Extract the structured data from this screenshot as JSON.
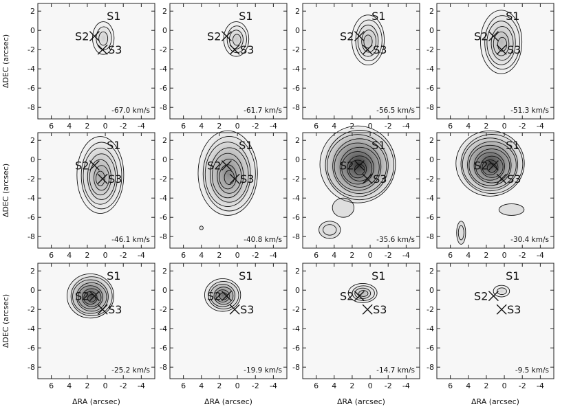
{
  "chart_data": {
    "type": "contour",
    "title": "",
    "xlabel": "ΔRA (arcsec)",
    "ylabel": "ΔDEC (arcsec)",
    "xlim": [
      7.5,
      -5.5
    ],
    "ylim": [
      -9.2,
      2.8
    ],
    "x_ticks": [
      6,
      4,
      2,
      0,
      -2,
      -4
    ],
    "y_ticks": [
      2,
      0,
      -2,
      -4,
      -6,
      -8
    ],
    "grid": false,
    "layout": "3 rows x 4 columns",
    "sources": [
      {
        "name": "S1",
        "x": 0.0,
        "y": 1.6
      },
      {
        "name": "S2",
        "x": 1.2,
        "y": -0.6
      },
      {
        "name": "S3",
        "x": 0.3,
        "y": -2.0
      }
    ],
    "panels": [
      {
        "velocity": "-67.0 km/s",
        "peak": {
          "x": 0.2,
          "y": -0.8
        },
        "size": [
          1.2,
          1.7
        ],
        "levels": 3,
        "intensity": 0.08,
        "secondary": []
      },
      {
        "velocity": "-61.7 km/s",
        "peak": {
          "x": 0.1,
          "y": -0.9
        },
        "size": [
          1.4,
          1.8
        ],
        "levels": 4,
        "intensity": 0.1,
        "secondary": []
      },
      {
        "velocity": "-56.5 km/s",
        "peak": {
          "x": 0.2,
          "y": -1.0
        },
        "size": [
          1.8,
          2.6
        ],
        "levels": 5,
        "intensity": 0.14,
        "secondary": []
      },
      {
        "velocity": "-51.3 km/s",
        "peak": {
          "x": 0.3,
          "y": -1.2
        },
        "size": [
          2.3,
          3.3
        ],
        "levels": 6,
        "intensity": 0.18,
        "secondary": []
      },
      {
        "velocity": "-46.1 km/s",
        "peak": {
          "x": 0.5,
          "y": -1.6
        },
        "size": [
          2.6,
          4.0
        ],
        "levels": 7,
        "intensity": 0.25,
        "secondary": []
      },
      {
        "velocity": "-40.8 km/s",
        "peak": {
          "x": 1.0,
          "y": -1.4
        },
        "size": [
          3.3,
          4.4
        ],
        "levels": 8,
        "intensity": 0.4,
        "secondary": [
          {
            "x": 4.0,
            "y": -7.1,
            "size": [
              0.2,
              0.2
            ],
            "levels": 1
          }
        ]
      },
      {
        "velocity": "-35.6 km/s",
        "peak": {
          "x": 1.3,
          "y": -0.5
        },
        "size": [
          4.2,
          4.0
        ],
        "levels": 10,
        "intensity": 0.75,
        "secondary": [
          {
            "x": 4.5,
            "y": -7.3,
            "size": [
              1.2,
              0.9
            ],
            "levels": 2
          },
          {
            "x": 3.0,
            "y": -5.0,
            "size": [
              1.2,
              1.0
            ],
            "levels": 1
          }
        ]
      },
      {
        "velocity": "-30.4 km/s",
        "peak": {
          "x": 1.5,
          "y": -0.4
        },
        "size": [
          3.8,
          3.4
        ],
        "levels": 10,
        "intensity": 0.7,
        "secondary": [
          {
            "x": 4.8,
            "y": -7.6,
            "size": [
              0.5,
              1.2
            ],
            "levels": 2
          },
          {
            "x": -0.8,
            "y": -5.2,
            "size": [
              1.4,
              0.6
            ],
            "levels": 1
          }
        ]
      },
      {
        "velocity": "-25.2 km/s",
        "peak": {
          "x": 1.6,
          "y": -0.6
        },
        "size": [
          2.6,
          2.3
        ],
        "levels": 8,
        "intensity": 0.65,
        "secondary": []
      },
      {
        "velocity": "-19.9 km/s",
        "peak": {
          "x": 1.6,
          "y": -0.5
        },
        "size": [
          2.0,
          1.7
        ],
        "levels": 6,
        "intensity": 0.5,
        "secondary": []
      },
      {
        "velocity": "-14.7 km/s",
        "peak": {
          "x": 0.8,
          "y": -0.3
        },
        "size": [
          1.6,
          1.0
        ],
        "levels": 4,
        "intensity": 0.18,
        "secondary": []
      },
      {
        "velocity": "-9.5 km/s",
        "peak": {
          "x": 0.3,
          "y": -0.1
        },
        "size": [
          0.9,
          0.6
        ],
        "levels": 2,
        "intensity": 0.06,
        "secondary": []
      }
    ]
  }
}
